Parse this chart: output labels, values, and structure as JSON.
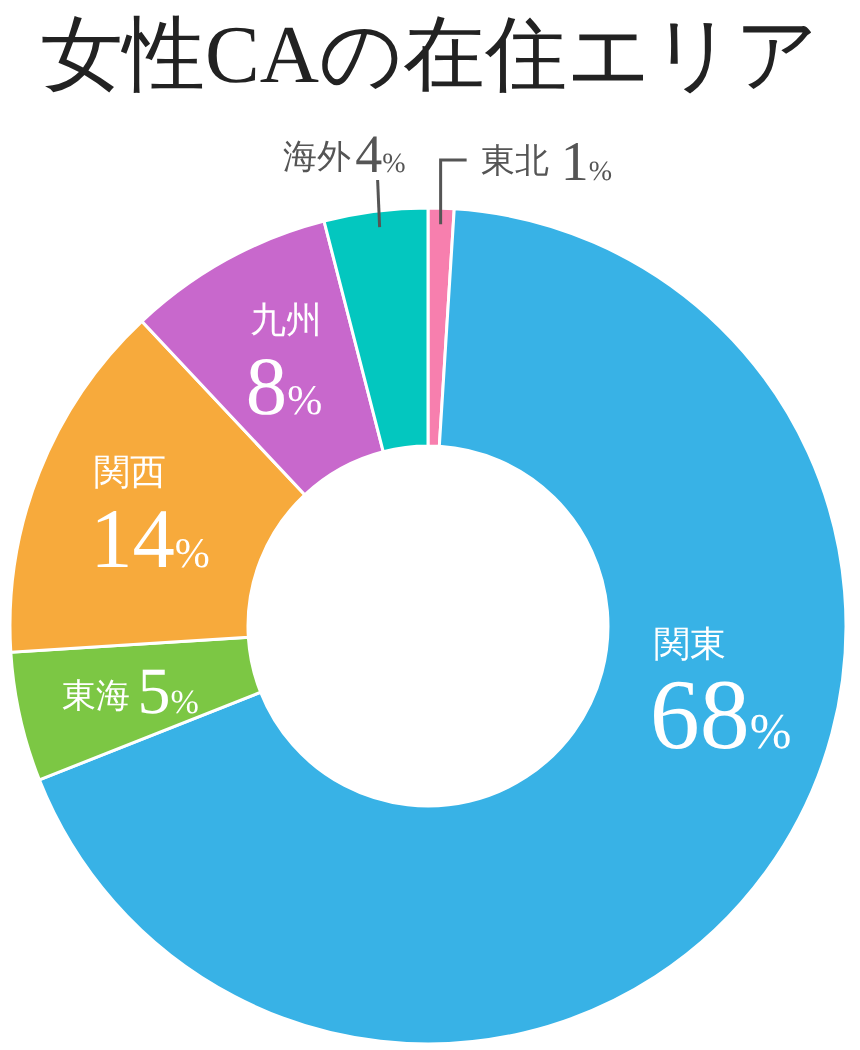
{
  "chart_data": {
    "type": "donut",
    "title": "女性CAの在住エリア",
    "categories": [
      "東北",
      "関東",
      "東海",
      "関西",
      "九州",
      "海外"
    ],
    "values": [
      1,
      68,
      5,
      14,
      8,
      4
    ],
    "colors": [
      "#f77fae",
      "#38b2e6",
      "#7cc744",
      "#f7aa3c",
      "#c868cc",
      "#03c7bf"
    ],
    "value_labels": [
      "1%",
      "68%",
      "5%",
      "14%",
      "8%",
      "4%"
    ]
  }
}
